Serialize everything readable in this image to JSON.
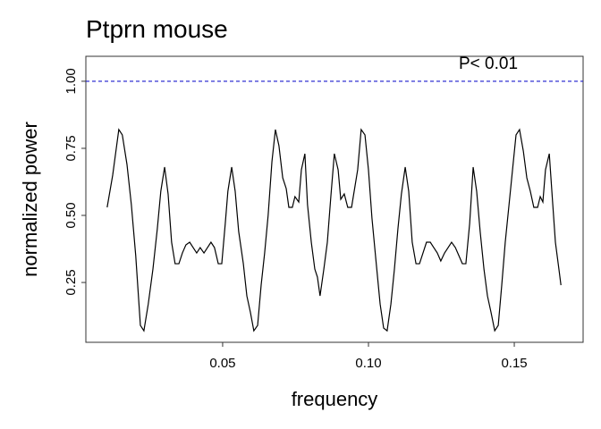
{
  "chart_data": {
    "type": "line",
    "title": "Ptprn mouse",
    "x_label": "frequency",
    "y_label": "normalized power",
    "xlim": [
      0.0031,
      0.1736
    ],
    "ylim": [
      0.027,
      1.093
    ],
    "xticks": [
      0.05,
      {
        "value": 0.1,
        "label": "0.10"
      },
      0.15
    ],
    "yticks": [
      0.25,
      {
        "value": 0.5,
        "label": "0.50"
      },
      0.75,
      {
        "value": 1,
        "label": "1.00"
      }
    ],
    "grid": false,
    "threshold": {
      "value": 1,
      "label": "P< 0.01",
      "color": "#1a1acd"
    },
    "series": [
      {
        "color": "#000000",
        "x": [
          0.0104,
          0.0123,
          0.0144,
          0.0156,
          0.0172,
          0.0187,
          0.0202,
          0.0218,
          0.023,
          0.0245,
          0.0261,
          0.0276,
          0.0288,
          0.0301,
          0.0313,
          0.0325,
          0.0337,
          0.035,
          0.0362,
          0.0374,
          0.0387,
          0.0399,
          0.0411,
          0.0423,
          0.0436,
          0.0448,
          0.046,
          0.0472,
          0.0485,
          0.0497,
          0.0509,
          0.0518,
          0.0531,
          0.0543,
          0.0555,
          0.0571,
          0.0583,
          0.0595,
          0.0607,
          0.062,
          0.0632,
          0.0644,
          0.0656,
          0.0669,
          0.0681,
          0.0693,
          0.0706,
          0.0718,
          0.0727,
          0.0739,
          0.0748,
          0.0761,
          0.077,
          0.0782,
          0.0791,
          0.0804,
          0.0816,
          0.0825,
          0.0834,
          0.0847,
          0.0859,
          0.0871,
          0.0883,
          0.0896,
          0.0905,
          0.0917,
          0.0929,
          0.0942,
          0.0954,
          0.0963,
          0.0975,
          0.0988,
          0.1,
          0.1012,
          0.1025,
          0.104,
          0.1052,
          0.1064,
          0.1077,
          0.1089,
          0.1101,
          0.1113,
          0.1126,
          0.1138,
          0.115,
          0.1163,
          0.1175,
          0.1187,
          0.1199,
          0.1212,
          0.1224,
          0.1236,
          0.1248,
          0.1261,
          0.1273,
          0.1285,
          0.1298,
          0.131,
          0.1322,
          0.1334,
          0.1347,
          0.1359,
          0.1371,
          0.1383,
          0.1396,
          0.1408,
          0.142,
          0.1433,
          0.1445,
          0.1457,
          0.1469,
          0.1482,
          0.1494,
          0.1506,
          0.1518,
          0.1531,
          0.1543,
          0.1555,
          0.1567,
          0.158,
          0.1589,
          0.1598,
          0.1607,
          0.162,
          0.1632,
          0.1641,
          0.1653,
          0.166
        ],
        "values": [
          0.53,
          0.65,
          0.82,
          0.8,
          0.69,
          0.54,
          0.35,
          0.09,
          0.07,
          0.17,
          0.3,
          0.45,
          0.59,
          0.68,
          0.58,
          0.4,
          0.32,
          0.32,
          0.36,
          0.39,
          0.4,
          0.38,
          0.36,
          0.38,
          0.36,
          0.38,
          0.4,
          0.38,
          0.32,
          0.32,
          0.47,
          0.59,
          0.68,
          0.59,
          0.44,
          0.32,
          0.2,
          0.14,
          0.07,
          0.09,
          0.24,
          0.36,
          0.5,
          0.7,
          0.82,
          0.76,
          0.64,
          0.6,
          0.53,
          0.53,
          0.57,
          0.55,
          0.67,
          0.73,
          0.54,
          0.4,
          0.3,
          0.27,
          0.2,
          0.3,
          0.4,
          0.57,
          0.73,
          0.67,
          0.56,
          0.58,
          0.53,
          0.53,
          0.61,
          0.67,
          0.82,
          0.8,
          0.67,
          0.49,
          0.34,
          0.17,
          0.08,
          0.07,
          0.17,
          0.3,
          0.45,
          0.58,
          0.68,
          0.59,
          0.4,
          0.32,
          0.32,
          0.36,
          0.4,
          0.4,
          0.38,
          0.36,
          0.33,
          0.36,
          0.38,
          0.4,
          0.38,
          0.35,
          0.32,
          0.32,
          0.47,
          0.68,
          0.59,
          0.44,
          0.3,
          0.2,
          0.14,
          0.07,
          0.09,
          0.24,
          0.4,
          0.54,
          0.67,
          0.8,
          0.82,
          0.74,
          0.64,
          0.59,
          0.53,
          0.53,
          0.57,
          0.55,
          0.67,
          0.73,
          0.54,
          0.4,
          0.3,
          0.24
        ]
      }
    ]
  }
}
